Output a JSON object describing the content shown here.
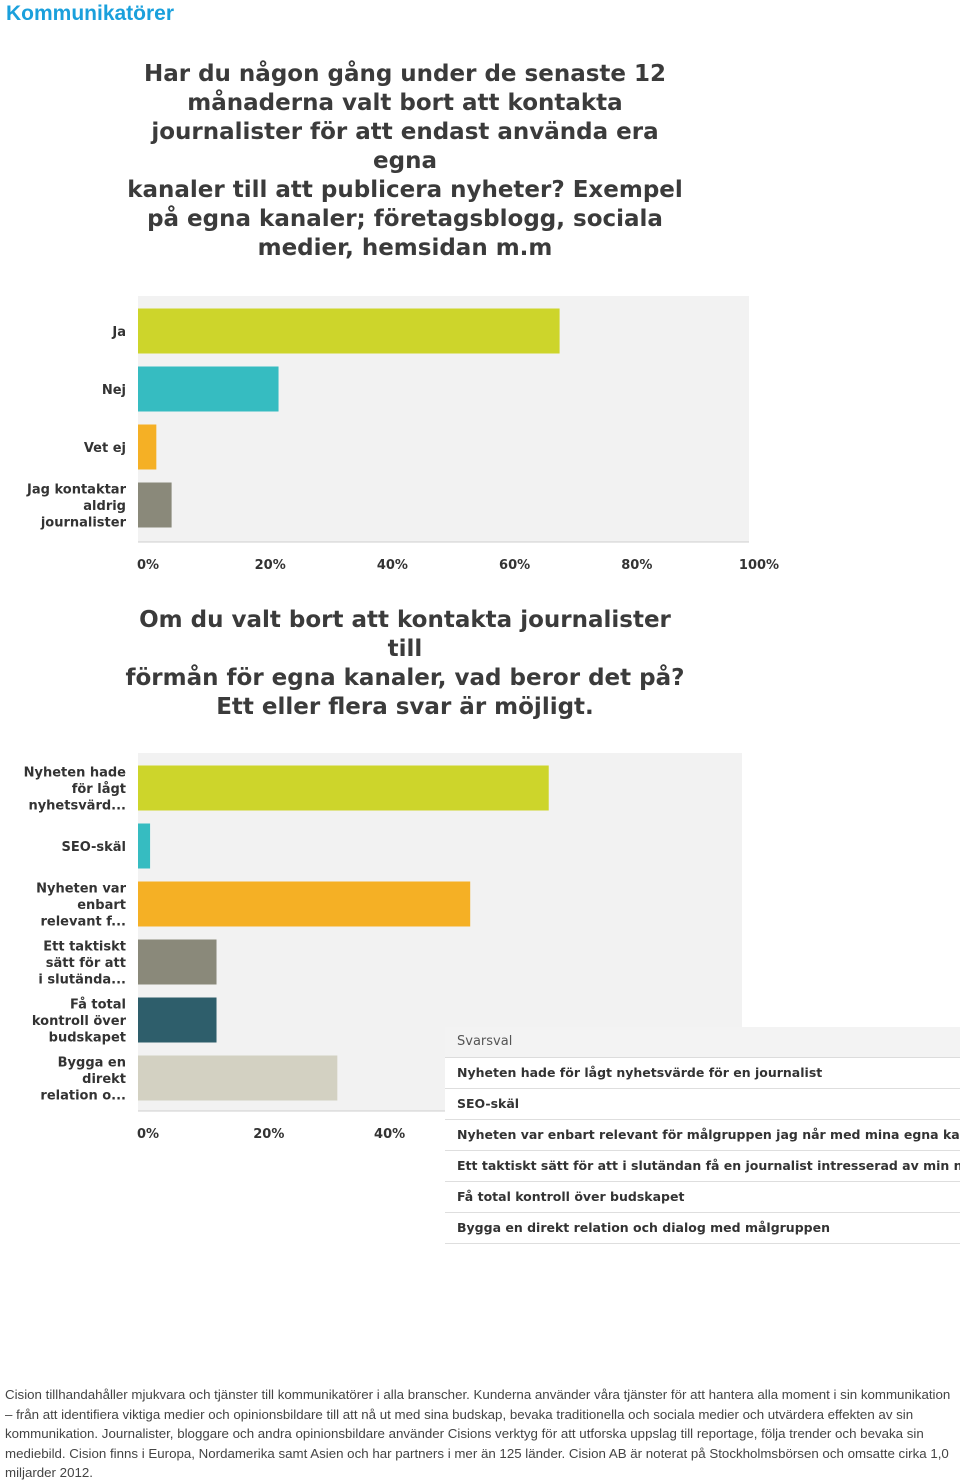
{
  "header": {
    "title": "Kommunikatörer"
  },
  "chart_data": [
    {
      "type": "bar",
      "orientation": "horizontal",
      "title_lines": [
        "Har du någon gång under de senaste 12",
        "månaderna valt bort att kontakta",
        "journalister för att endast använda era egna",
        "kanaler till att publicera nyheter? Exempel",
        "på egna kanaler; företagsblogg, sociala",
        "medier, hemsidan m.m"
      ],
      "categories": [
        [
          "Ja"
        ],
        [
          "Nej"
        ],
        [
          "Vet ej"
        ],
        [
          "Jag kontaktar",
          "aldrig",
          "journalister"
        ]
      ],
      "values": [
        69,
        23,
        3,
        5.5
      ],
      "colors": [
        "#cdd52b",
        "#36bcc1",
        "#f5b025",
        "#8a897a"
      ],
      "xlim": [
        0,
        100
      ],
      "xticks": [
        "0%",
        "20%",
        "40%",
        "60%",
        "80%",
        "100%"
      ],
      "grid": false
    },
    {
      "type": "bar",
      "orientation": "horizontal",
      "title_lines": [
        "Om du valt bort att kontakta journalister till",
        "förmån för egna kanaler, vad beror det på?",
        "Ett eller flera svar är möjligt."
      ],
      "categories": [
        [
          "Nyheten hade",
          "för lågt",
          "nyhetsvärd..."
        ],
        [
          "SEO-skäl"
        ],
        [
          "Nyheten var",
          "enbart",
          "relevant f..."
        ],
        [
          "Ett taktiskt",
          "sätt för att",
          "i slutända..."
        ],
        [
          "Få total",
          "kontroll över",
          "budskapet"
        ],
        [
          "Bygga en",
          "direkt",
          "relation o..."
        ]
      ],
      "values": [
        68,
        2,
        55,
        13,
        13,
        33
      ],
      "colors": [
        "#cdd52b",
        "#36bcc1",
        "#f5b025",
        "#8a897a",
        "#2e5e6b",
        "#d3d1c2"
      ],
      "xlim": [
        0,
        100
      ],
      "xticks": [
        "0%",
        "20%",
        "40%"
      ],
      "legend": {
        "header": "Svarsval",
        "placement": "bottom-right",
        "items": [
          "Nyheten hade för lågt nyhetsvärde för en journalist",
          "SEO-skäl",
          "Nyheten var enbart relevant för målgruppen jag når med mina egna kanaler etc",
          "Ett taktiskt sätt för att i slutändan få en journalist intresserad av min nyhet",
          "Få total kontroll över budskapet",
          "Bygga en direkt relation och dialog med målgruppen"
        ]
      }
    }
  ],
  "footer": {
    "text": "Cision tillhandahåller mjukvara och tjänster till kommunikatörer i alla branscher. Kunderna använder våra tjänster för att hantera alla moment i sin kommunikation – från att identifiera viktiga medier och opinionsbildare till att nå ut med sina budskap, bevaka traditionella och sociala medier och utvärdera effekten av sin kommunikation. Journalister, bloggare och andra opinionsbildare använder Cisions verktyg för att utforska uppslag till reportage, följa trender och bevaka sin mediebild. Cision finns i Europa, Nordamerika samt Asien och har partners i mer än 125 länder. Cision AB är noterat på Stockholmsbörsen och omsatte cirka 1,0 miljarder 2012."
  }
}
